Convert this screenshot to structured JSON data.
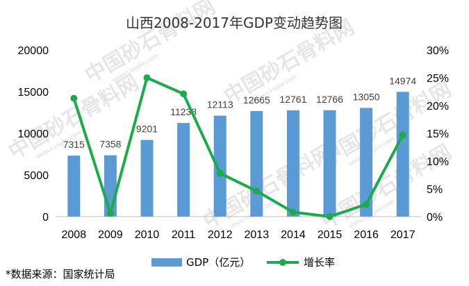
{
  "chart_data": {
    "type": "bar",
    "title": "山西2008-2017年GDP变动趋势图",
    "categories": [
      "2008",
      "2009",
      "2010",
      "2011",
      "2012",
      "2013",
      "2014",
      "2015",
      "2016",
      "2017"
    ],
    "series": [
      {
        "name": "GDP（亿元）",
        "type": "bar",
        "axis": "left",
        "color": "#5b9bd5",
        "values": [
          7315,
          7358,
          9201,
          11238,
          12113,
          12665,
          12761,
          12766,
          13050,
          14974
        ],
        "labels": [
          "7315",
          "7358",
          "9201",
          "11238",
          "12113",
          "12665",
          "12761",
          "12766",
          "13050",
          "14974"
        ]
      },
      {
        "name": "增长率",
        "type": "line",
        "axis": "right",
        "color": "#1aac4a",
        "values": [
          21.3,
          0.6,
          25.0,
          22.1,
          7.8,
          4.6,
          0.8,
          0.0,
          2.2,
          14.7
        ]
      }
    ],
    "y_left": {
      "min": 0,
      "max": 20000,
      "ticks": [
        "0",
        "5000",
        "10000",
        "15000",
        "20000"
      ]
    },
    "y_right": {
      "min": 0,
      "max": 30,
      "ticks": [
        "0%",
        "5%",
        "10%",
        "15%",
        "20%",
        "25%",
        "30%"
      ]
    },
    "grid": false,
    "legend": "bottom"
  },
  "footnote": "*数据来源：国家统计局",
  "watermark": {
    "text": "中国砂石骨料网",
    "url": "www.cssglw.com"
  }
}
